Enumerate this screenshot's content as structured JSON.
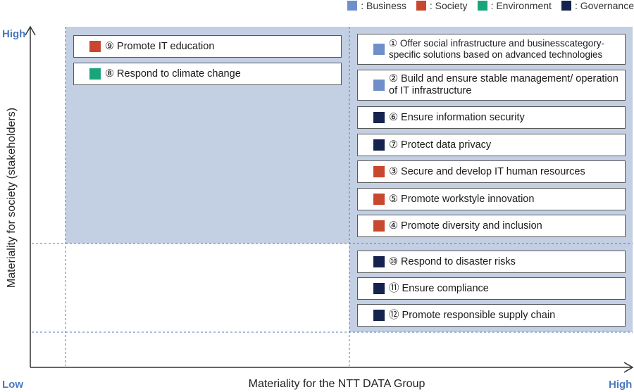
{
  "colors": {
    "business": "#6f8fcb",
    "society": "#c8472e",
    "environment": "#19a57a",
    "governance": "#15234f",
    "zone": "#c3cfe3",
    "axis": "#333333",
    "dashed": "#4a78c0",
    "tick": "#4a78c0"
  },
  "legend": [
    {
      "key": "business",
      "label": ": Business"
    },
    {
      "key": "society",
      "label": ": Society"
    },
    {
      "key": "environment",
      "label": ": Environment"
    },
    {
      "key": "governance",
      "label": ": Governance"
    }
  ],
  "axes": {
    "y_label": "Materiality for society (stakeholders)",
    "x_label": "Materiality for the NTT DATA Group",
    "y_high": "High",
    "x_low": "Low",
    "x_high": "High"
  },
  "items": [
    {
      "num": "⑨",
      "text": "Promote IT education",
      "category": "society"
    },
    {
      "num": "⑧",
      "text": "Respond to climate change",
      "category": "environment"
    },
    {
      "num": "①",
      "text": "Offer social infrastructure and businesscategory-specific solutions based on advanced technologies",
      "category": "business"
    },
    {
      "num": "②",
      "text": "Build and ensure stable management/ operation of IT infrastructure",
      "category": "business"
    },
    {
      "num": "⑥",
      "text": "Ensure information security",
      "category": "governance"
    },
    {
      "num": "⑦",
      "text": "Protect data privacy",
      "category": "governance"
    },
    {
      "num": "③",
      "text": "Secure and develop IT human resources",
      "category": "society"
    },
    {
      "num": "⑤",
      "text": "Promote workstyle innovation",
      "category": "society"
    },
    {
      "num": "④",
      "text": "Promote diversity and inclusion",
      "category": "society"
    },
    {
      "num": "⑩",
      "text": "Respond to disaster risks",
      "category": "governance"
    },
    {
      "num": "⑪",
      "text": "Ensure compliance",
      "category": "governance"
    },
    {
      "num": "⑫",
      "text": "Promote responsible supply chain",
      "category": "governance"
    }
  ]
}
